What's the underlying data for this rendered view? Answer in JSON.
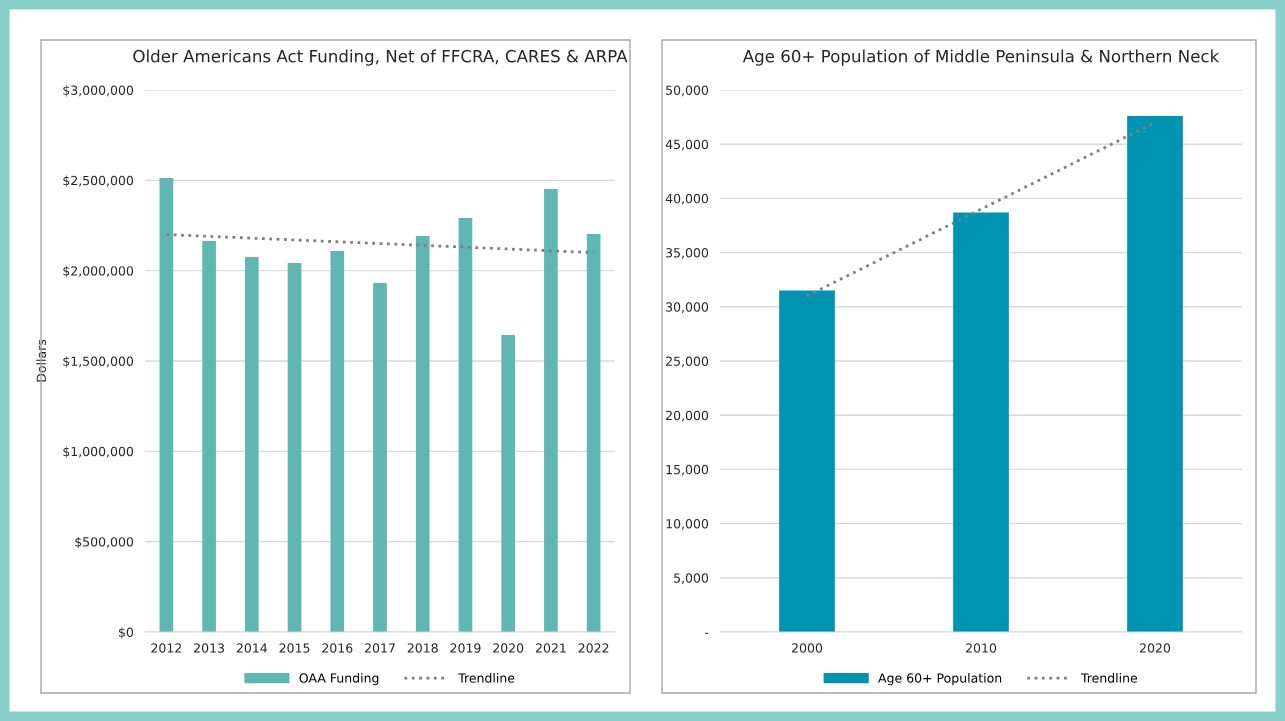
{
  "chart_data": [
    {
      "type": "bar",
      "title": "Older Americans Act Funding, Net of FFCRA, CARES & ARPA",
      "ylabel": "Dollars",
      "categories": [
        "2012",
        "2013",
        "2014",
        "2015",
        "2016",
        "2017",
        "2018",
        "2019",
        "2020",
        "2021",
        "2022"
      ],
      "series": [
        {
          "name": "OAA Funding",
          "color": "#5eb8b1",
          "values": [
            2513000,
            2164000,
            2076000,
            2042000,
            2109000,
            1932000,
            2192000,
            2291000,
            1644000,
            2452000,
            2203000
          ]
        },
        {
          "name": "Trendline",
          "type": "line",
          "color": "#7f7f7f",
          "line_style": "dotted",
          "values": [
            2200000,
            2190000,
            2180000,
            2170000,
            2160000,
            2150000,
            2140000,
            2130000,
            2120000,
            2110000,
            2100000
          ]
        }
      ],
      "ylim": [
        0,
        3000000
      ],
      "yticks": [
        {
          "value": 0,
          "label": "$0"
        },
        {
          "value": 500000,
          "label": "$500,000"
        },
        {
          "value": 1000000,
          "label": "$1,000,000"
        },
        {
          "value": 1500000,
          "label": "$1,500,000"
        },
        {
          "value": 2000000,
          "label": "$2,000,000"
        },
        {
          "value": 2500000,
          "label": "$2,500,000"
        },
        {
          "value": 3000000,
          "label": "$3,000,000"
        }
      ],
      "grid": "y",
      "legend": "bottom"
    },
    {
      "type": "bar",
      "title": "Age 60+ Population of Middle Peninsula & Northern Neck",
      "categories": [
        "2000",
        "2010",
        "2020"
      ],
      "series": [
        {
          "name": "Age 60+ Population",
          "color": "#0093b2",
          "values": [
            31500,
            38700,
            47600
          ]
        },
        {
          "name": "Trendline",
          "type": "line",
          "color": "#7f7f7f",
          "line_style": "dotted",
          "values": [
            31000,
            39000,
            47000
          ]
        }
      ],
      "ylim": [
        0,
        50000
      ],
      "yticks": [
        {
          "value": 0,
          "label": "-"
        },
        {
          "value": 5000,
          "label": "5,000"
        },
        {
          "value": 10000,
          "label": "10,000"
        },
        {
          "value": 15000,
          "label": "15,000"
        },
        {
          "value": 20000,
          "label": "20,000"
        },
        {
          "value": 25000,
          "label": "25,000"
        },
        {
          "value": 30000,
          "label": "30,000"
        },
        {
          "value": 35000,
          "label": "35,000"
        },
        {
          "value": 40000,
          "label": "40,000"
        },
        {
          "value": 45000,
          "label": "45,000"
        },
        {
          "value": 50000,
          "label": "50,000"
        }
      ],
      "grid": "y",
      "legend": "bottom"
    }
  ]
}
